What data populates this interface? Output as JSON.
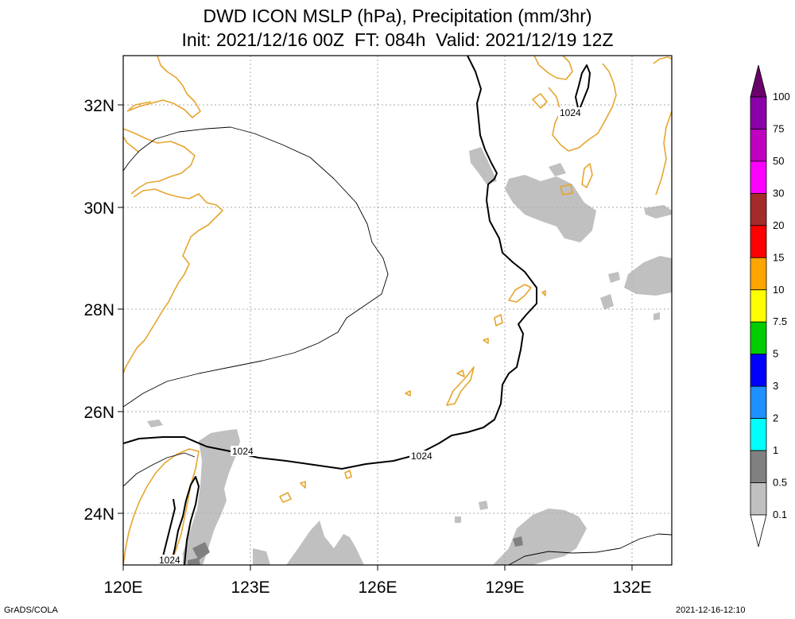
{
  "title": {
    "line1": "DWD ICON MSLP (hPa), Precipitation (mm/3hr)",
    "line2": "Init: 2021/12/16 00Z  FT: 084h  Valid: 2021/12/19 12Z"
  },
  "axes": {
    "lon_labels": [
      "120E",
      "123E",
      "126E",
      "129E",
      "132E"
    ],
    "lat_labels": [
      "32N",
      "30N",
      "28N",
      "26N",
      "24N"
    ]
  },
  "isobar_labels": [
    "1024",
    "1024",
    "1024",
    "1024"
  ],
  "colorbar": {
    "levels": [
      "100",
      "75",
      "50",
      "30",
      "20",
      "15",
      "10",
      "7.5",
      "5",
      "3",
      "2",
      "1",
      "0.5",
      "0.1"
    ],
    "colors": [
      "#6a006a",
      "#8a00a8",
      "#c000c0",
      "#ff00ff",
      "#a52a2a",
      "#ff0000",
      "#ffa500",
      "#ffff00",
      "#00cc00",
      "#0000ff",
      "#1e90ff",
      "#00ffff",
      "#808080",
      "#c0c0c0",
      "#ffffff"
    ]
  },
  "colors": {
    "coastline": "#e6a52e",
    "isobar": "#000000",
    "precip_light": "#c0c0c0",
    "precip_mid": "#808080",
    "grid": "#aaaaaa"
  },
  "footer": {
    "left": "GrADS/COLA",
    "right": "2021-12-16-12:10"
  }
}
